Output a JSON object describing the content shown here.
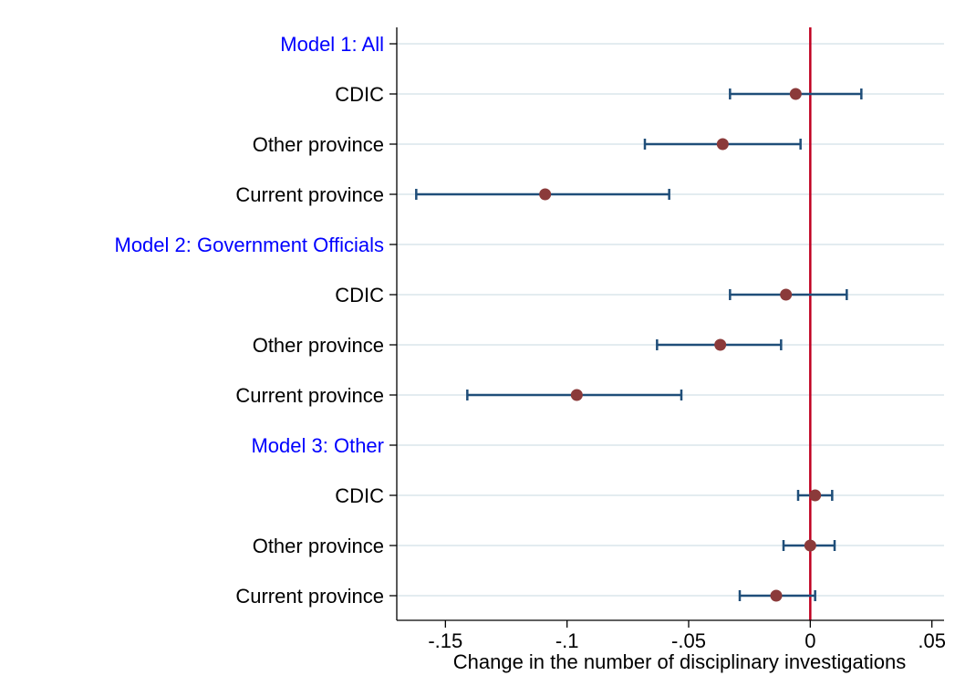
{
  "chart_data": {
    "type": "coefficient-plot",
    "title": "",
    "xlabel": "Change in the number of disciplinary investigations",
    "ylabel": "",
    "xlim": [
      -0.17,
      0.055
    ],
    "xticks": [
      {
        "value": -0.15,
        "label": "-.15"
      },
      {
        "value": -0.1,
        "label": "-.1"
      },
      {
        "value": -0.05,
        "label": "-.05"
      },
      {
        "value": 0,
        "label": "0"
      },
      {
        "value": 0.05,
        "label": ".05"
      }
    ],
    "reference_line": 0,
    "grid": true,
    "rows": [
      {
        "label": "Model 1: All",
        "header": true
      },
      {
        "label": "CDIC",
        "estimate": -0.006,
        "ci": [
          -0.033,
          0.021
        ]
      },
      {
        "label": "Other province",
        "estimate": -0.036,
        "ci": [
          -0.068,
          -0.004
        ]
      },
      {
        "label": "Current province",
        "estimate": -0.109,
        "ci": [
          -0.162,
          -0.058
        ]
      },
      {
        "label": "Model 2: Government Officials",
        "header": true
      },
      {
        "label": "CDIC",
        "estimate": -0.01,
        "ci": [
          -0.033,
          0.015
        ]
      },
      {
        "label": "Other province",
        "estimate": -0.037,
        "ci": [
          -0.063,
          -0.012
        ]
      },
      {
        "label": "Current province",
        "estimate": -0.096,
        "ci": [
          -0.141,
          -0.053
        ]
      },
      {
        "label": "Model 3: Other",
        "header": true
      },
      {
        "label": "CDIC",
        "estimate": 0.002,
        "ci": [
          -0.005,
          0.009
        ]
      },
      {
        "label": "Other province",
        "estimate": 0.0,
        "ci": [
          -0.011,
          0.01
        ]
      },
      {
        "label": "Current province",
        "estimate": -0.014,
        "ci": [
          -0.029,
          0.002
        ]
      }
    ],
    "colors": {
      "point": "#8b3a3a",
      "ci": "#1f4e79",
      "reference_line": "#c00020",
      "grid": "#e3ecf0",
      "axis": "#000000",
      "header_text": "#0000ff",
      "row_text": "#000000"
    }
  }
}
